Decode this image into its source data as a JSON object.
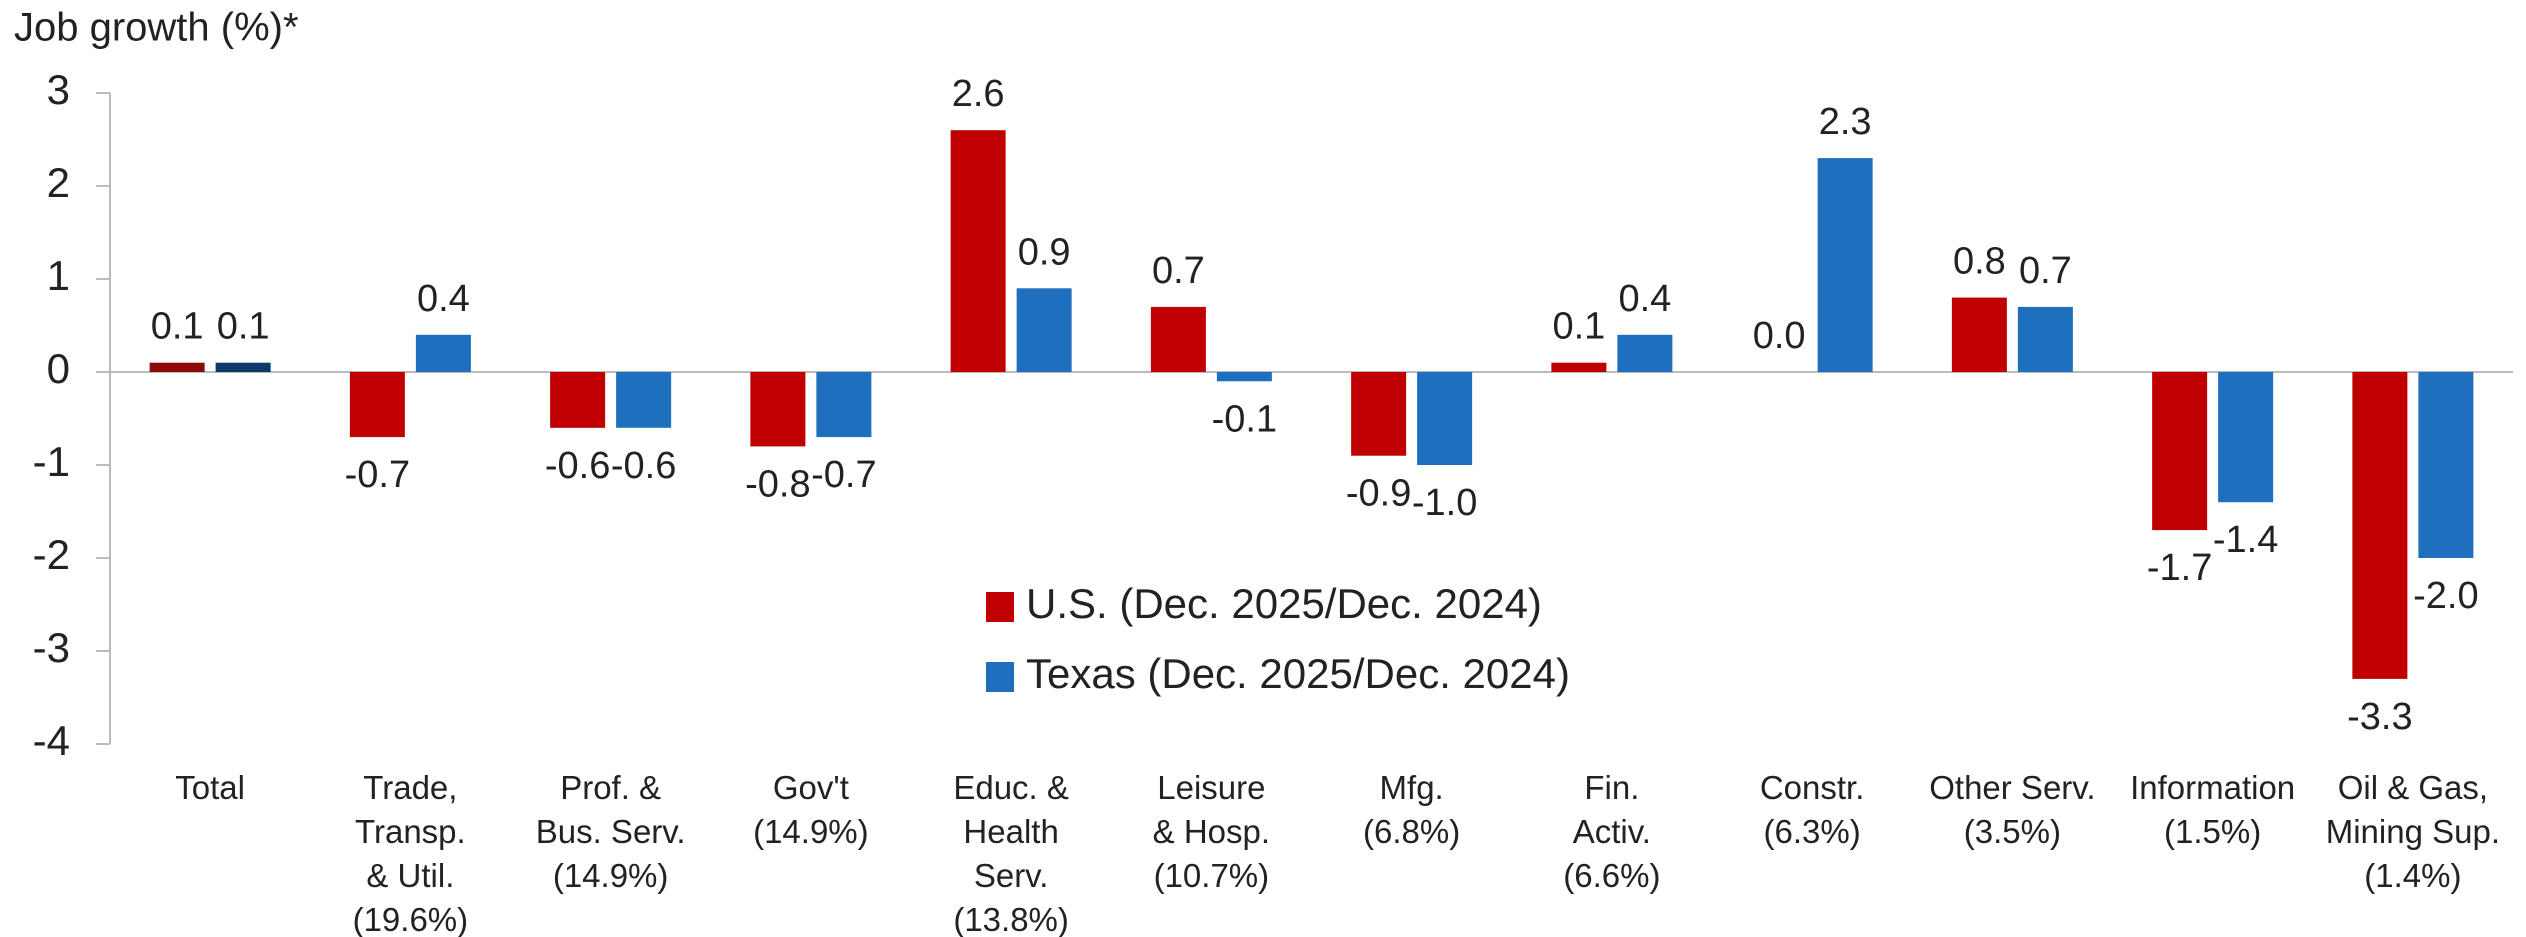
{
  "chart_data": {
    "type": "bar",
    "title": "Job growth (%)*",
    "categories": [
      [
        "Total"
      ],
      [
        "Trade,",
        "Transp.",
        "& Util.",
        "(19.6%)"
      ],
      [
        "Prof. &",
        "Bus. Serv.",
        "(14.9%)"
      ],
      [
        "Gov't",
        "(14.9%)"
      ],
      [
        "Educ. &",
        "Health",
        "Serv.",
        "(13.8%)"
      ],
      [
        "Leisure",
        "& Hosp.",
        "(10.7%)"
      ],
      [
        "Mfg.",
        "(6.8%)"
      ],
      [
        "Fin.",
        "Activ.",
        "(6.6%)"
      ],
      [
        "Constr.",
        "(6.3%)"
      ],
      [
        "Other Serv.",
        "(3.5%)"
      ],
      [
        "Information",
        "(1.5%)"
      ],
      [
        "Oil & Gas,",
        "Mining Sup.",
        "(1.4%)"
      ]
    ],
    "series": [
      {
        "name": "U.S. (Dec. 2025/Dec. 2024)",
        "color": "#c00000",
        "total_color": "#8b0a0a",
        "values": [
          0.1,
          -0.7,
          -0.6,
          -0.8,
          2.6,
          0.7,
          -0.9,
          0.1,
          0.0,
          0.8,
          -1.7,
          -3.3
        ],
        "value_labels": [
          "0.1",
          "-0.7",
          "-0.6",
          "-0.8",
          "2.6",
          "0.7",
          "-0.9",
          "0.1",
          "0.0",
          "0.8",
          "-1.7",
          "-3.3"
        ]
      },
      {
        "name": "Texas (Dec. 2025/Dec. 2024)",
        "color": "#1f6fbf",
        "total_color": "#0d3a6b",
        "values": [
          0.1,
          0.4,
          -0.6,
          -0.7,
          0.9,
          -0.1,
          -1.0,
          0.4,
          2.3,
          0.7,
          -1.4,
          -2.0
        ],
        "value_labels": [
          "0.1",
          "0.4",
          "-0.6",
          "-0.7",
          "0.9",
          "-0.1",
          "-1.0",
          "0.4",
          "2.3",
          "0.7",
          "-1.4",
          "-2.0"
        ]
      }
    ],
    "ylim": [
      -4,
      3
    ],
    "yticks": [
      -4,
      -3,
      -2,
      -1,
      0,
      1,
      2,
      3
    ],
    "grid": false
  }
}
